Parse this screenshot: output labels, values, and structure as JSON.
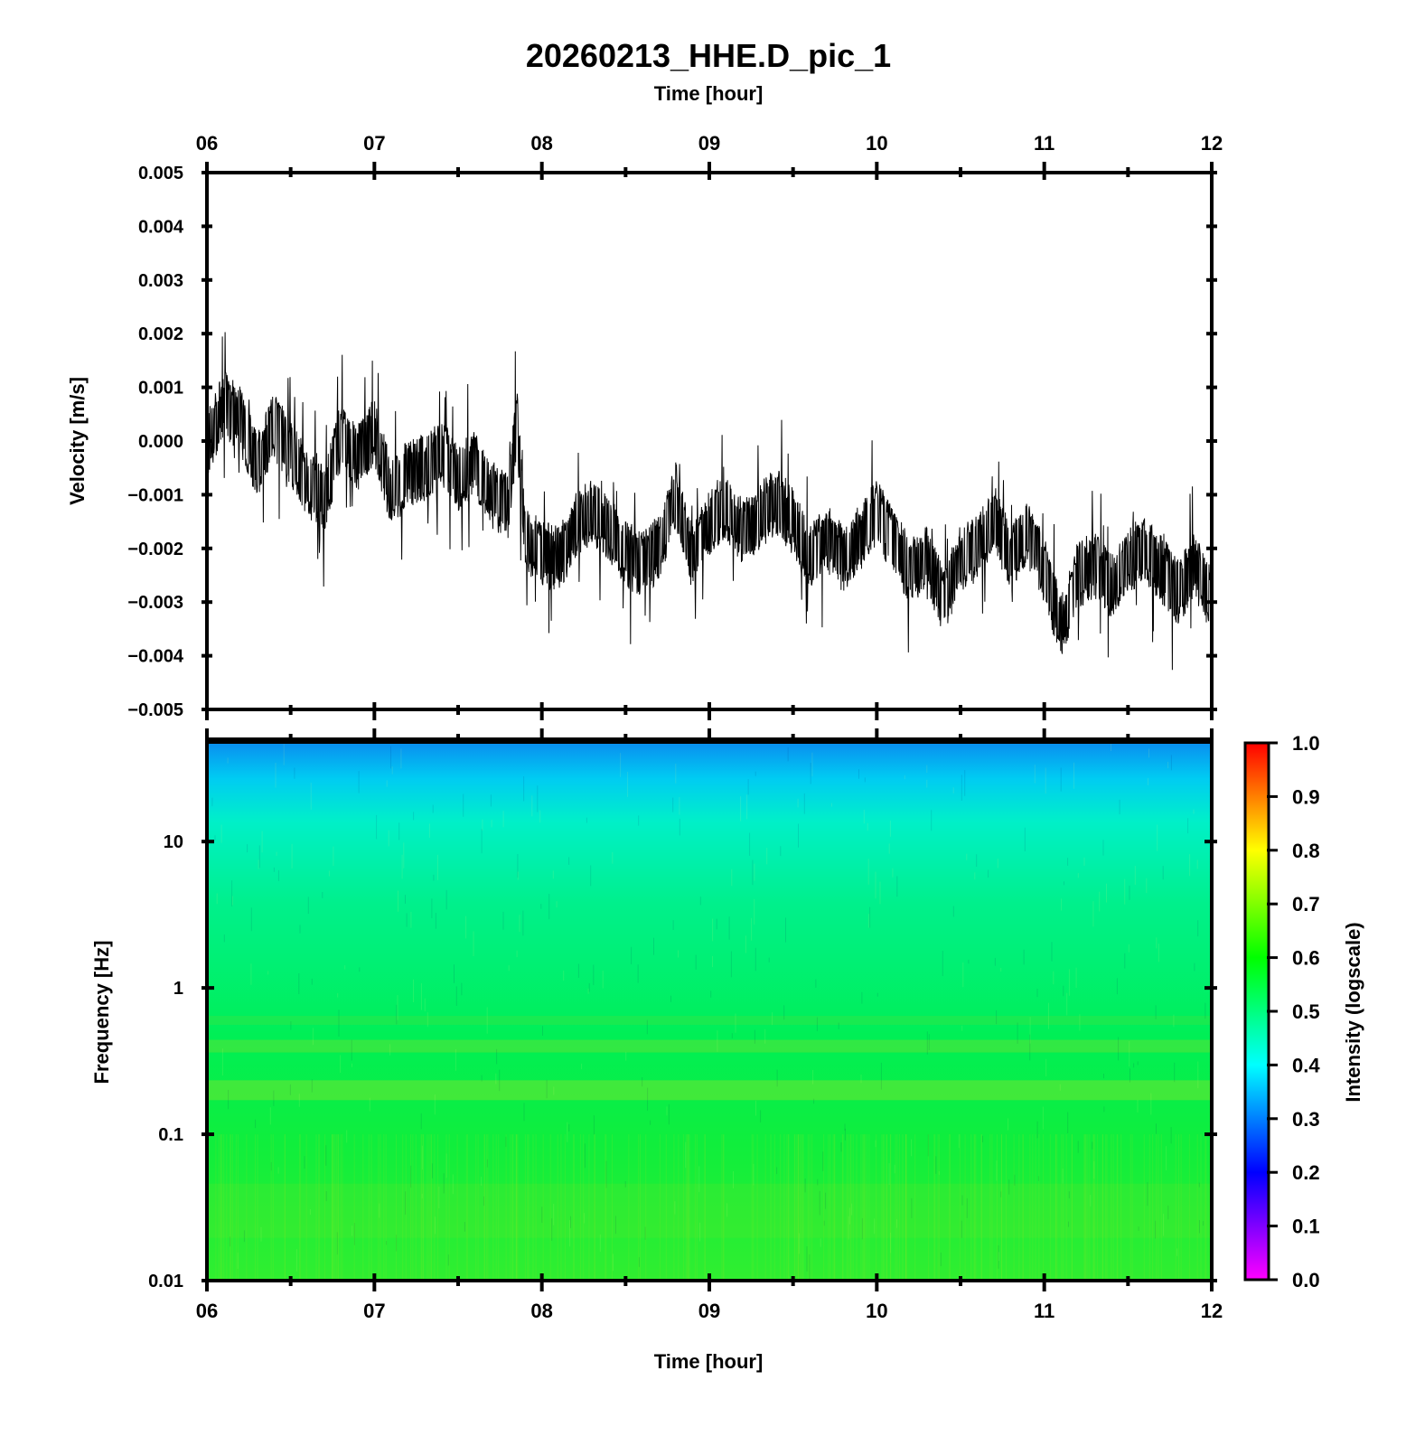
{
  "chart_data": [
    {
      "type": "line",
      "title": "20260213_HHE.D_pic_1",
      "top_xlabel": "Time [hour]",
      "ylabel": "Velocity [m/s]",
      "x_ticks": [
        "06",
        "07",
        "08",
        "09",
        "10",
        "11",
        "12"
      ],
      "xlim_hours": [
        6,
        12
      ],
      "ylim": [
        -0.005,
        0.005
      ],
      "y_ticks": [
        "0.005",
        "0.004",
        "0.003",
        "0.002",
        "0.001",
        "0.000",
        "−0.001",
        "−0.002",
        "−0.003",
        "−0.004",
        "−0.005"
      ],
      "line_color": "#000000",
      "series": [
        {
          "x": [
            6.0,
            6.1,
            6.2,
            6.3,
            6.4,
            6.5,
            6.6,
            6.7,
            6.8,
            6.9,
            7.0,
            7.1,
            7.2,
            7.3,
            7.4,
            7.5,
            7.6,
            7.7,
            7.8,
            7.85,
            7.9,
            8.0,
            8.1,
            8.2,
            8.3,
            8.4,
            8.5,
            8.6,
            8.7,
            8.8,
            8.9,
            9.0,
            9.1,
            9.2,
            9.3,
            9.4,
            9.5,
            9.6,
            9.7,
            9.8,
            9.9,
            10.0,
            10.1,
            10.2,
            10.3,
            10.4,
            10.5,
            10.6,
            10.7,
            10.8,
            10.9,
            11.0,
            11.1,
            11.2,
            11.3,
            11.4,
            11.5,
            11.6,
            11.7,
            11.8,
            11.9,
            12.0
          ],
          "y": [
            -0.0001,
            0.0007,
            0.0004,
            -0.0005,
            0.0003,
            -0.0002,
            -0.0008,
            -0.0011,
            0.0001,
            -0.0003,
            0.0002,
            -0.001,
            -0.0006,
            -0.0005,
            -0.0002,
            -0.0007,
            -0.0004,
            -0.001,
            -0.0012,
            0.0004,
            -0.0018,
            -0.0021,
            -0.0022,
            -0.0016,
            -0.0013,
            -0.0016,
            -0.0021,
            -0.0023,
            -0.002,
            -0.001,
            -0.0022,
            -0.0015,
            -0.0012,
            -0.0017,
            -0.0014,
            -0.0011,
            -0.0015,
            -0.0022,
            -0.0018,
            -0.0022,
            -0.0018,
            -0.0013,
            -0.0019,
            -0.0024,
            -0.0022,
            -0.003,
            -0.0022,
            -0.002,
            -0.0014,
            -0.0022,
            -0.0017,
            -0.0024,
            -0.0035,
            -0.0025,
            -0.0023,
            -0.0027,
            -0.0022,
            -0.002,
            -0.0024,
            -0.0028,
            -0.0023,
            -0.003
          ]
        }
      ]
    },
    {
      "type": "heatmap",
      "xlabel": "Time [hour]",
      "ylabel": "Frequency [Hz]",
      "x_ticks": [
        "06",
        "07",
        "08",
        "09",
        "10",
        "11",
        "12"
      ],
      "xlim_hours": [
        6,
        12
      ],
      "y_scale": "log",
      "ylim": [
        0.01,
        50
      ],
      "y_ticks": [
        "10",
        "1",
        "0.1",
        "0.01"
      ],
      "colorbar_label": "Intensity (logscale)",
      "colorbar_ticks": [
        "1.0",
        "0.9",
        "0.8",
        "0.7",
        "0.6",
        "0.5",
        "0.4",
        "0.3",
        "0.2",
        "0.1",
        "0.0"
      ],
      "colormap": "rainbow: 0.0 magenta → 0.2 blue → 0.4 cyan → 0.6 green → 0.8 yellow → 1.0 red",
      "intensity_by_frequency": {
        "frequency_hz": [
          50,
          30,
          20,
          10,
          3,
          1,
          0.4,
          0.2,
          0.1,
          0.03,
          0.01
        ],
        "intensity": [
          0.36,
          0.4,
          0.44,
          0.48,
          0.52,
          0.56,
          0.6,
          0.62,
          0.6,
          0.62,
          0.64
        ]
      }
    }
  ]
}
